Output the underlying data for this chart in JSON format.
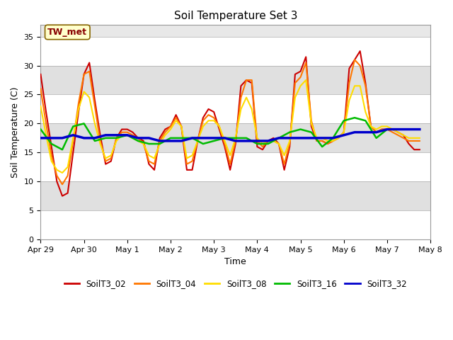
{
  "title": "Soil Temperature Set 3",
  "xlabel": "Time",
  "ylabel": "Soil Temperature (C)",
  "ylim": [
    0,
    37
  ],
  "yticks": [
    0,
    5,
    10,
    15,
    20,
    25,
    30,
    35
  ],
  "fig_bg_color": "#ffffff",
  "plot_bg_color": "#e8e8e8",
  "annotation_text": "TW_met",
  "annotation_color": "#880000",
  "annotation_bg": "#ffffcc",
  "annotation_border": "#886600",
  "series": {
    "SoilT3_02": {
      "color": "#cc0000",
      "linewidth": 1.5,
      "times_hours": [
        0,
        3,
        6,
        9,
        12,
        15,
        18,
        21,
        24,
        27,
        30,
        33,
        36,
        39,
        42,
        45,
        48,
        51,
        54,
        57,
        60,
        63,
        66,
        69,
        72,
        75,
        78,
        81,
        84,
        87,
        90,
        93,
        96,
        99,
        102,
        105,
        108,
        111,
        114,
        117,
        120,
        123,
        126,
        129,
        132,
        135,
        138,
        141,
        144,
        147,
        150,
        153,
        156,
        159,
        162,
        165,
        168,
        171,
        174,
        177,
        180,
        183,
        186,
        189,
        192,
        195,
        198,
        201,
        204,
        207,
        210
      ],
      "values": [
        28.5,
        22.0,
        16.0,
        10.0,
        7.5,
        8.0,
        15.0,
        22.0,
        28.5,
        30.5,
        24.0,
        18.0,
        13.0,
        13.5,
        17.5,
        19.0,
        19.0,
        18.5,
        17.5,
        17.0,
        13.0,
        12.0,
        17.5,
        19.0,
        19.5,
        21.5,
        19.5,
        12.0,
        12.0,
        17.0,
        21.0,
        22.5,
        22.0,
        19.0,
        16.0,
        12.0,
        16.5,
        26.5,
        27.5,
        27.0,
        16.0,
        15.5,
        17.0,
        17.5,
        16.5,
        12.0,
        16.0,
        28.5,
        29.0,
        31.5,
        19.5,
        17.0,
        17.0,
        16.5,
        17.0,
        17.5,
        18.5,
        29.5,
        31.0,
        32.5,
        27.0,
        19.5,
        18.5,
        19.0,
        19.0,
        19.0,
        18.5,
        18.0,
        16.5,
        15.5,
        15.5
      ]
    },
    "SoilT3_04": {
      "color": "#ff7700",
      "linewidth": 1.5,
      "times_hours": [
        0,
        3,
        6,
        9,
        12,
        15,
        18,
        21,
        24,
        27,
        30,
        33,
        36,
        39,
        42,
        45,
        48,
        51,
        54,
        57,
        60,
        63,
        66,
        69,
        72,
        75,
        78,
        81,
        84,
        87,
        90,
        93,
        96,
        99,
        102,
        105,
        108,
        111,
        114,
        117,
        120,
        123,
        126,
        129,
        132,
        135,
        138,
        141,
        144,
        147,
        150,
        153,
        156,
        159,
        162,
        165,
        168,
        171,
        174,
        177,
        180,
        183,
        186,
        189,
        192,
        195,
        198,
        201,
        204,
        207,
        210
      ],
      "values": [
        26.0,
        20.0,
        14.5,
        11.0,
        9.5,
        11.0,
        17.0,
        23.5,
        28.5,
        29.0,
        23.0,
        17.0,
        13.5,
        14.0,
        17.5,
        18.5,
        18.5,
        18.0,
        17.5,
        16.5,
        13.5,
        13.0,
        17.0,
        18.5,
        19.5,
        21.0,
        19.5,
        13.0,
        13.5,
        17.0,
        20.5,
        21.5,
        21.0,
        19.5,
        16.5,
        13.0,
        17.0,
        24.5,
        27.5,
        27.5,
        17.0,
        16.0,
        17.0,
        17.0,
        16.5,
        13.0,
        16.5,
        27.0,
        28.0,
        30.5,
        20.5,
        17.0,
        17.0,
        16.5,
        17.0,
        17.5,
        18.5,
        27.0,
        31.0,
        30.0,
        26.5,
        19.5,
        18.5,
        19.0,
        19.0,
        18.5,
        18.0,
        17.5,
        17.0,
        17.0,
        17.0
      ]
    },
    "SoilT3_08": {
      "color": "#ffdd00",
      "linewidth": 1.5,
      "times_hours": [
        0,
        3,
        6,
        9,
        12,
        15,
        18,
        21,
        24,
        27,
        30,
        33,
        36,
        39,
        42,
        45,
        48,
        51,
        54,
        57,
        60,
        63,
        66,
        69,
        72,
        75,
        78,
        81,
        84,
        87,
        90,
        93,
        96,
        99,
        102,
        105,
        108,
        111,
        114,
        117,
        120,
        123,
        126,
        129,
        132,
        135,
        138,
        141,
        144,
        147,
        150,
        153,
        156,
        159,
        162,
        165,
        168,
        171,
        174,
        177,
        180,
        183,
        186,
        189,
        192,
        195,
        198,
        201,
        204,
        207,
        210
      ],
      "values": [
        23.0,
        18.0,
        13.5,
        12.0,
        11.5,
        12.5,
        17.5,
        22.5,
        25.5,
        24.5,
        20.0,
        16.5,
        14.0,
        14.5,
        17.0,
        18.0,
        18.0,
        17.5,
        17.0,
        16.5,
        14.5,
        14.0,
        16.5,
        18.0,
        19.0,
        20.5,
        19.5,
        14.0,
        14.5,
        17.0,
        19.5,
        20.5,
        20.5,
        19.5,
        17.0,
        14.5,
        17.5,
        22.5,
        24.5,
        22.5,
        17.5,
        16.5,
        17.0,
        17.0,
        16.5,
        14.5,
        17.0,
        24.5,
        26.5,
        27.5,
        20.0,
        17.5,
        17.5,
        17.0,
        17.0,
        17.5,
        18.5,
        24.0,
        26.5,
        26.5,
        22.0,
        19.5,
        19.0,
        19.5,
        19.5,
        19.0,
        18.5,
        18.0,
        17.5,
        17.5,
        17.5
      ]
    },
    "SoilT3_16": {
      "color": "#00bb00",
      "linewidth": 1.8,
      "times_hours": [
        0,
        6,
        12,
        18,
        24,
        30,
        36,
        42,
        48,
        54,
        60,
        66,
        72,
        78,
        84,
        90,
        96,
        102,
        108,
        114,
        120,
        126,
        132,
        138,
        144,
        150,
        156,
        162,
        168,
        174,
        180,
        186,
        192,
        198,
        204,
        210
      ],
      "values": [
        19.0,
        16.5,
        15.5,
        19.5,
        20.0,
        17.0,
        17.5,
        17.5,
        18.0,
        17.0,
        16.5,
        16.5,
        17.5,
        17.5,
        17.5,
        16.5,
        17.0,
        17.5,
        17.5,
        17.5,
        16.5,
        16.5,
        17.5,
        18.5,
        19.0,
        18.5,
        16.0,
        17.5,
        20.5,
        21.0,
        20.5,
        17.5,
        19.0,
        19.0,
        19.0,
        19.0
      ]
    },
    "SoilT3_32": {
      "color": "#0000cc",
      "linewidth": 2.5,
      "times_hours": [
        0,
        6,
        12,
        18,
        24,
        30,
        36,
        42,
        48,
        54,
        60,
        66,
        72,
        78,
        84,
        90,
        96,
        102,
        108,
        114,
        120,
        126,
        132,
        138,
        144,
        150,
        156,
        162,
        168,
        174,
        180,
        186,
        192,
        198,
        204,
        210
      ],
      "values": [
        17.5,
        17.5,
        17.5,
        18.0,
        17.5,
        17.5,
        18.0,
        18.0,
        18.0,
        17.5,
        17.5,
        17.0,
        17.0,
        17.0,
        17.5,
        17.5,
        17.5,
        17.5,
        17.0,
        17.0,
        17.0,
        17.0,
        17.5,
        17.5,
        17.5,
        17.5,
        17.5,
        17.5,
        18.0,
        18.5,
        18.5,
        18.5,
        19.0,
        19.0,
        19.0,
        19.0
      ]
    }
  },
  "xtick_labels": [
    "Apr 29",
    "Apr 30",
    "May 1",
    "May 2",
    "May 3",
    "May 4",
    "May 5",
    "May 6",
    "May 7",
    "May 8"
  ],
  "xtick_hours": [
    0,
    24,
    48,
    72,
    96,
    120,
    144,
    168,
    192,
    216
  ],
  "legend_order": [
    "SoilT3_02",
    "SoilT3_04",
    "SoilT3_08",
    "SoilT3_16",
    "SoilT3_32"
  ],
  "grid_band_colors": [
    "#ffffff",
    "#e0e0e0"
  ],
  "xlim": [
    0,
    216
  ]
}
